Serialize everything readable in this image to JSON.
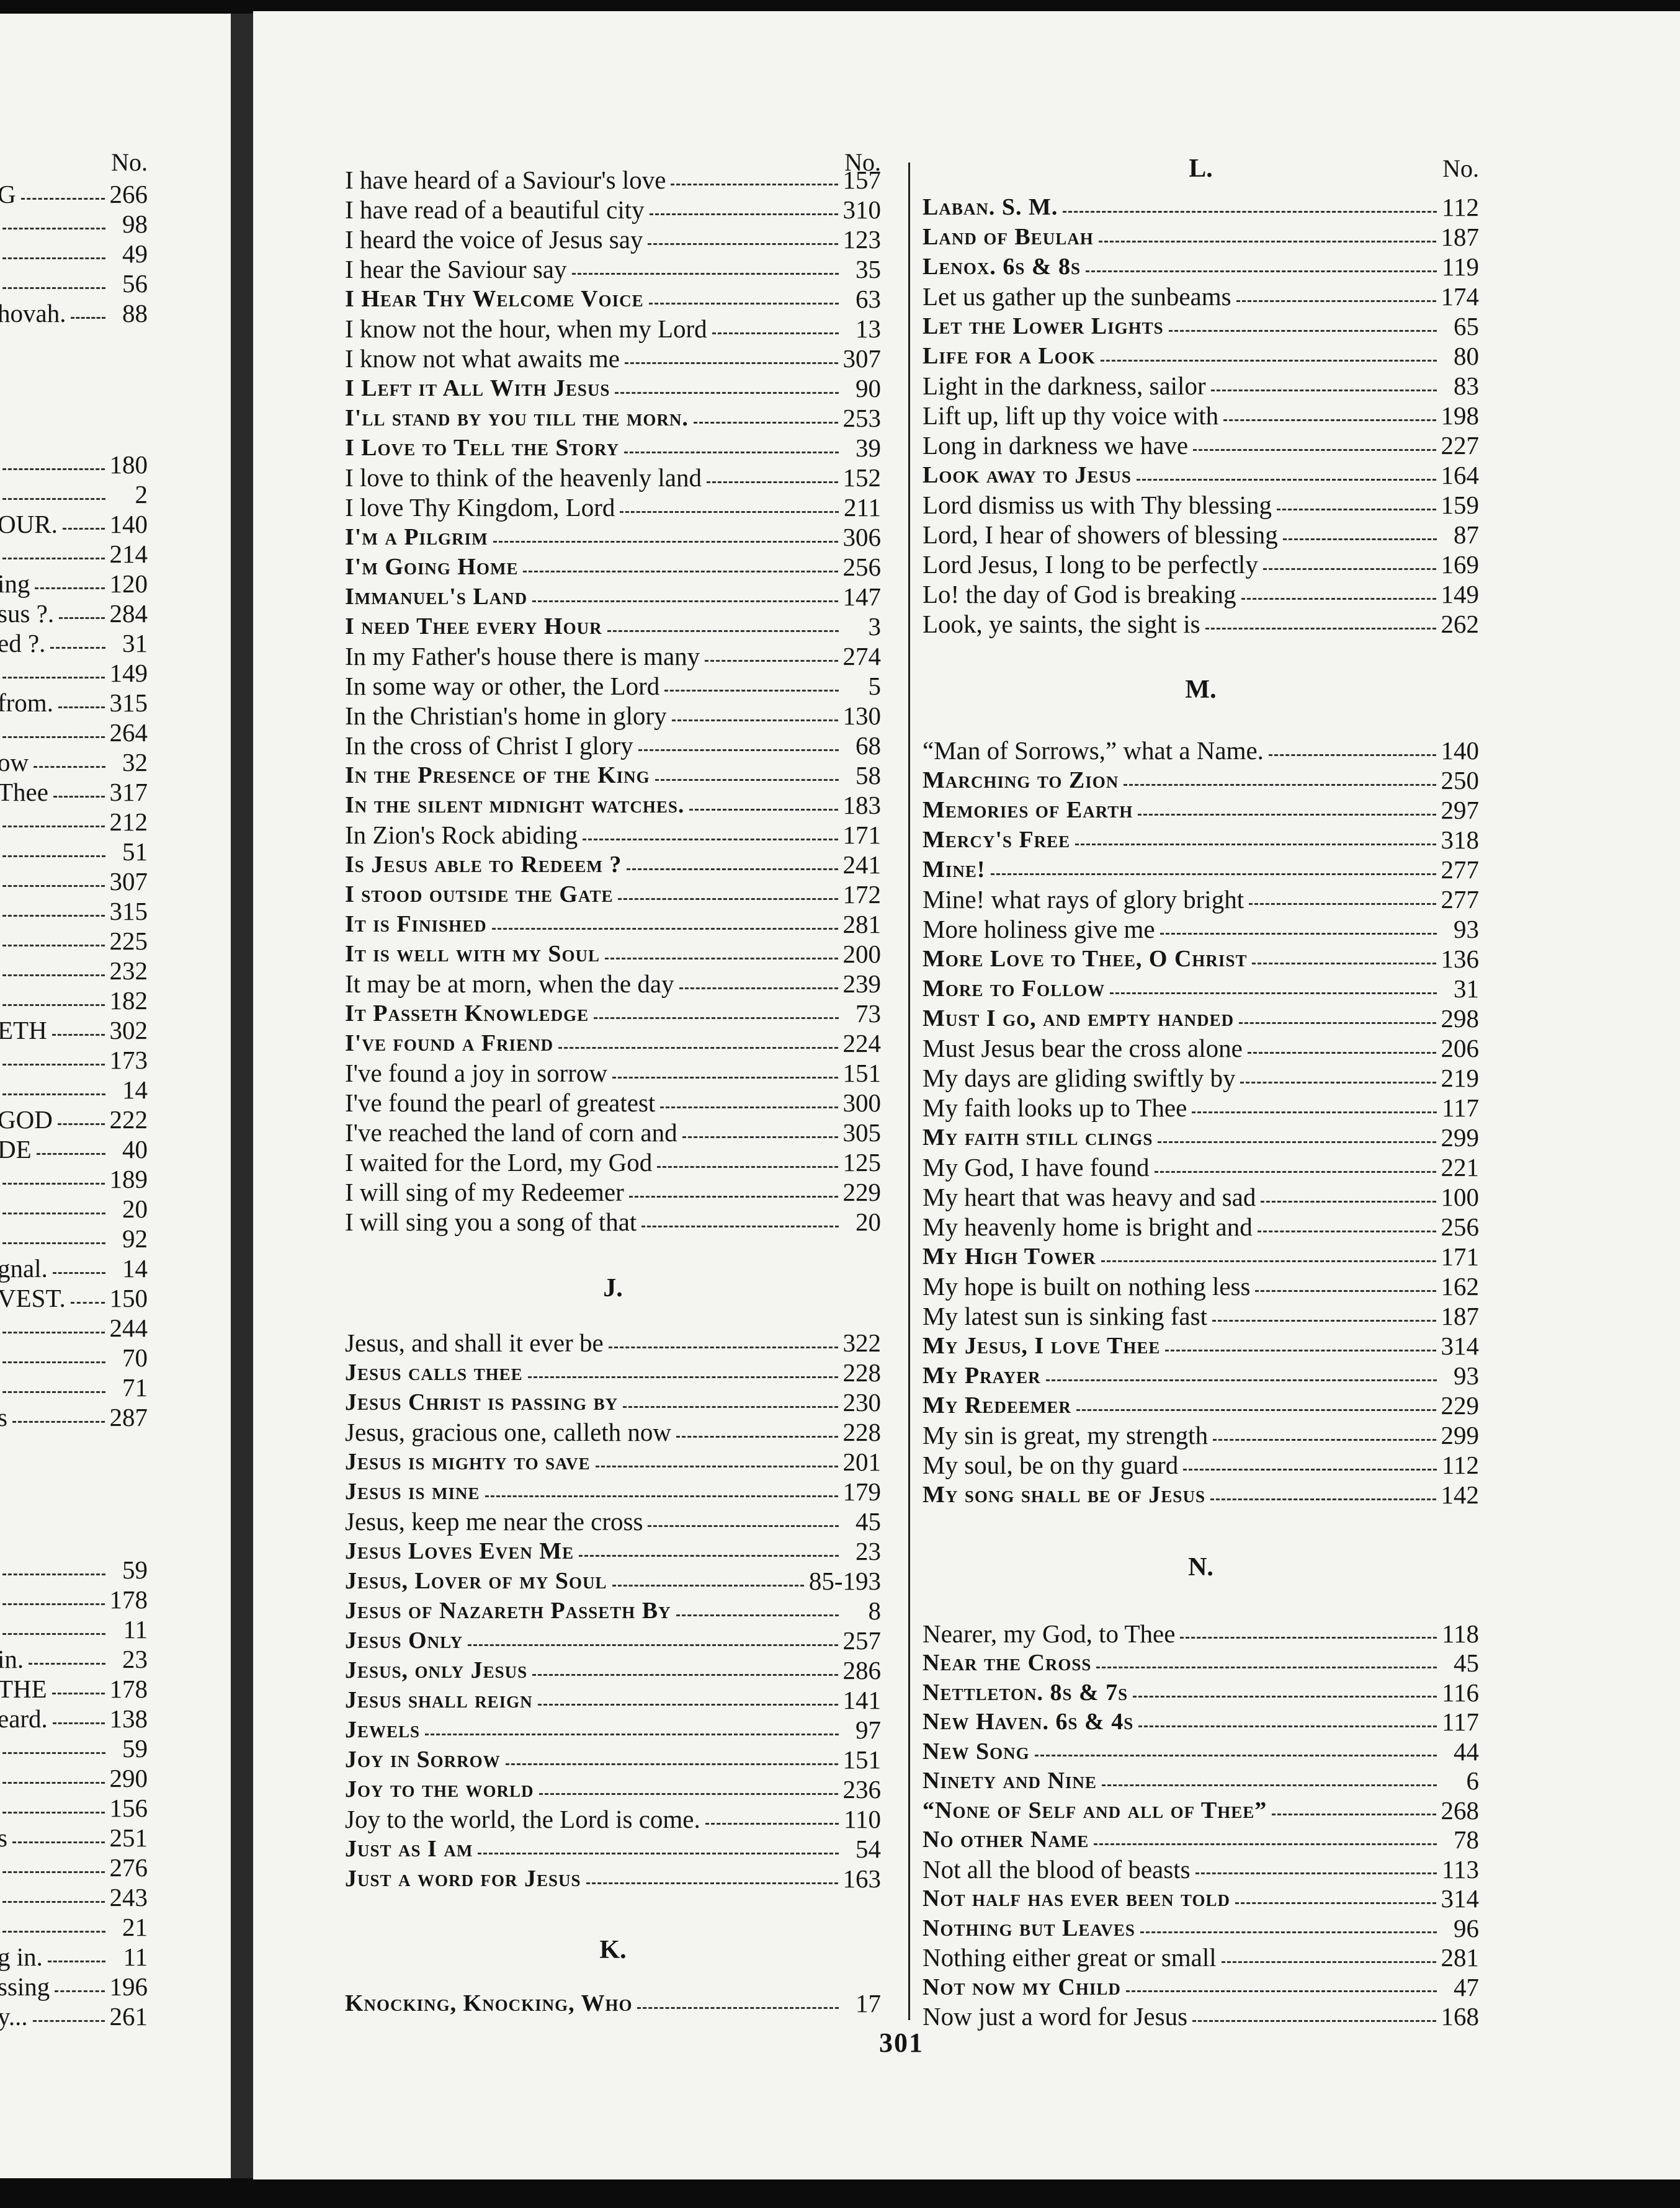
{
  "left_page": {
    "header": "No.",
    "groups": [
      [
        {
          "title": "G",
          "number": 266
        },
        {
          "number": 98
        },
        {
          "number": 49
        },
        {
          "number": 56
        },
        {
          "title": "hovah.",
          "number": 88
        }
      ],
      [
        {
          "number": 180
        },
        {
          "number": 2
        },
        {
          "title": "OUR.",
          "number": 140
        },
        {
          "number": 214
        },
        {
          "title": "ing",
          "number": 120
        },
        {
          "title": "sus ?.",
          "number": 284
        },
        {
          "title": "ed ?.",
          "number": 31
        },
        {
          "number": 149
        },
        {
          "title": "from.",
          "number": 315
        },
        {
          "number": 264
        },
        {
          "title": "ow",
          "number": 32
        },
        {
          "title": "Thee",
          "number": 317
        },
        {
          "number": 212
        },
        {
          "number": 51
        },
        {
          "number": 307
        },
        {
          "number": 315
        },
        {
          "number": 225
        },
        {
          "number": 232
        },
        {
          "number": 182
        },
        {
          "title": "ETH",
          "number": 302
        },
        {
          "number": 173
        },
        {
          "number": 14
        },
        {
          "title": "GOD",
          "number": 222
        },
        {
          "title": "DE",
          "number": 40
        },
        {
          "number": 189
        },
        {
          "number": 20
        },
        {
          "number": 92
        },
        {
          "title": "gnal.",
          "number": 14
        },
        {
          "title": "VEST.",
          "number": 150
        },
        {
          "number": 244
        },
        {
          "number": 70
        },
        {
          "number": 71
        },
        {
          "title": "s",
          "number": 287
        }
      ],
      [
        {
          "number": 59
        },
        {
          "number": 178
        },
        {
          "number": 11
        },
        {
          "title": "in.",
          "number": 23
        },
        {
          "title": "THE",
          "number": 178
        },
        {
          "title": "eard.",
          "number": 138
        },
        {
          "number": 59
        },
        {
          "number": 290
        },
        {
          "number": 156
        },
        {
          "title": "s",
          "number": 251
        },
        {
          "number": 276
        },
        {
          "number": 243
        },
        {
          "number": 21
        },
        {
          "title": "g in.",
          "number": 11
        },
        {
          "title": "ssing",
          "number": 196
        },
        {
          "title": "y...",
          "number": 261
        }
      ]
    ]
  },
  "right_page": {
    "page_number": 301,
    "columns": [
      {
        "header": "No.",
        "sections": [
          {
            "entries": [
              {
                "title": "I have heard of a Saviour's love",
                "number": 157
              },
              {
                "title": "I have read of a beautiful city",
                "number": 310
              },
              {
                "title": "I heard the voice of Jesus say",
                "number": 123
              },
              {
                "title": "I hear the Saviour say",
                "number": 35
              },
              {
                "title": "I Hear Thy Welcome Voice",
                "number": 63,
                "small_caps": true
              },
              {
                "title": "I know not the hour, when my Lord",
                "number": 13
              },
              {
                "title": "I know not what awaits me",
                "number": 307
              },
              {
                "title": "I Left it All With Jesus",
                "number": 90,
                "small_caps": true
              },
              {
                "title": "I'll stand by you till the morn.",
                "number": 253,
                "small_caps": true
              },
              {
                "title": "I Love to Tell the Story",
                "number": 39,
                "small_caps": true
              },
              {
                "title": "I love to think of the heavenly land",
                "number": 152
              },
              {
                "title": "I love Thy Kingdom, Lord",
                "number": 211
              },
              {
                "title": "I'm a Pilgrim",
                "number": 306,
                "small_caps": true
              },
              {
                "title": "I'm Going Home",
                "number": 256,
                "small_caps": true
              },
              {
                "title": "Immanuel's Land",
                "number": 147,
                "small_caps": true
              },
              {
                "title": "I need Thee every Hour",
                "number": 3,
                "small_caps": true
              },
              {
                "title": "In my Father's house there is many",
                "number": 274
              },
              {
                "title": "In some way or other, the Lord",
                "number": 5
              },
              {
                "title": "In the Christian's home in glory",
                "number": 130
              },
              {
                "title": "In the cross of Christ I glory",
                "number": 68
              },
              {
                "title": "In the Presence of the King",
                "number": 58,
                "small_caps": true
              },
              {
                "title": "In the silent midnight watches.",
                "number": 183,
                "small_caps": true
              },
              {
                "title": "In Zion's Rock abiding",
                "number": 171
              },
              {
                "title": "Is Jesus able to Redeem ?",
                "number": 241,
                "small_caps": true
              },
              {
                "title": "I stood outside the Gate",
                "number": 172,
                "small_caps": true
              },
              {
                "title": "It is Finished",
                "number": 281,
                "small_caps": true
              },
              {
                "title": "It is well with my Soul",
                "number": 200,
                "small_caps": true
              },
              {
                "title": "It may be at morn, when the day",
                "number": 239
              },
              {
                "title": "It Passeth Knowledge",
                "number": 73,
                "small_caps": true
              },
              {
                "title": "I've found a Friend",
                "number": 224,
                "small_caps": true
              },
              {
                "title": "I've found a joy in sorrow",
                "number": 151
              },
              {
                "title": "I've found the pearl of greatest",
                "number": 300
              },
              {
                "title": "I've reached the land of corn and",
                "number": 305
              },
              {
                "title": "I waited for the Lord, my God",
                "number": 125
              },
              {
                "title": "I will sing of my Redeemer",
                "number": 229
              },
              {
                "title": "I will sing you a song of that",
                "number": 20
              }
            ]
          },
          {
            "letter": "J.",
            "entries": [
              {
                "title": "Jesus, and shall it ever be",
                "number": 322
              },
              {
                "title": "Jesus calls thee",
                "number": 228,
                "small_caps": true
              },
              {
                "title": "Jesus Christ is passing by",
                "number": 230,
                "small_caps": true
              },
              {
                "title": "Jesus, gracious one, calleth now",
                "number": 228
              },
              {
                "title": "Jesus is mighty to save",
                "number": 201,
                "small_caps": true
              },
              {
                "title": "Jesus is mine",
                "number": 179,
                "small_caps": true
              },
              {
                "title": "Jesus, keep me near the cross",
                "number": 45
              },
              {
                "title": "Jesus Loves Even Me",
                "number": 23,
                "small_caps": true
              },
              {
                "title": "Jesus, Lover of my Soul",
                "number": "85-193",
                "small_caps": true
              },
              {
                "title": "Jesus of Nazareth Passeth By",
                "number": 8,
                "small_caps": true
              },
              {
                "title": "Jesus Only",
                "number": 257,
                "small_caps": true
              },
              {
                "title": "Jesus, only Jesus",
                "number": 286,
                "small_caps": true
              },
              {
                "title": "Jesus shall reign",
                "number": 141,
                "small_caps": true
              },
              {
                "title": "Jewels",
                "number": 97,
                "small_caps": true
              },
              {
                "title": "Joy in Sorrow",
                "number": 151,
                "small_caps": true
              },
              {
                "title": "Joy to the world",
                "number": 236,
                "small_caps": true
              },
              {
                "title": "Joy to the world, the Lord is come.",
                "number": 110
              },
              {
                "title": "Just as I am",
                "number": 54,
                "small_caps": true
              },
              {
                "title": "Just a word for Jesus",
                "number": 163,
                "small_caps": true
              }
            ]
          },
          {
            "letter": "K.",
            "entries": [
              {
                "title": "Knocking, Knocking, Who",
                "number": 17,
                "small_caps": true
              }
            ]
          }
        ]
      },
      {
        "header": "No.",
        "sections": [
          {
            "letter": "L.",
            "entries": [
              {
                "title": "Laban. S. M.",
                "number": 112,
                "small_caps": true
              },
              {
                "title": "Land of Beulah",
                "number": 187,
                "small_caps": true
              },
              {
                "title": "Lenox. 6s & 8s",
                "number": 119,
                "small_caps": true
              },
              {
                "title": "Let us gather up the sunbeams",
                "number": 174
              },
              {
                "title": "Let the Lower Lights",
                "number": 65,
                "small_caps": true
              },
              {
                "title": "Life for a Look",
                "number": 80,
                "small_caps": true
              },
              {
                "title": "Light in the darkness, sailor",
                "number": 83
              },
              {
                "title": "Lift up, lift up thy voice with",
                "number": 198
              },
              {
                "title": "Long in darkness we have",
                "number": 227
              },
              {
                "title": "Look away to Jesus",
                "number": 164,
                "small_caps": true
              },
              {
                "title": "Lord dismiss us with Thy blessing",
                "number": 159
              },
              {
                "title": "Lord, I hear of showers of blessing",
                "number": 87
              },
              {
                "title": "Lord Jesus, I long to be perfectly",
                "number": 169
              },
              {
                "title": "Lo! the day of God is breaking",
                "number": 149
              },
              {
                "title": "Look, ye saints, the sight is",
                "number": 262
              }
            ]
          },
          {
            "letter": "M.",
            "entries": [
              {
                "title": "“Man of Sorrows,” what a Name.",
                "number": 140
              },
              {
                "title": "Marching to Zion",
                "number": 250,
                "small_caps": true
              },
              {
                "title": "Memories of Earth",
                "number": 297,
                "small_caps": true
              },
              {
                "title": "Mercy's Free",
                "number": 318,
                "small_caps": true
              },
              {
                "title": "Mine!",
                "number": 277,
                "small_caps": true
              },
              {
                "title": "Mine! what rays of glory bright",
                "number": 277
              },
              {
                "title": "More holiness give me",
                "number": 93
              },
              {
                "title": "More Love to Thee, O Christ",
                "number": 136,
                "small_caps": true
              },
              {
                "title": "More to Follow",
                "number": 31,
                "small_caps": true
              },
              {
                "title": "Must I go, and empty handed",
                "number": 298,
                "small_caps": true
              },
              {
                "title": "Must Jesus bear the cross alone",
                "number": 206
              },
              {
                "title": "My days are gliding swiftly by",
                "number": 219
              },
              {
                "title": "My faith looks up to Thee",
                "number": 117
              },
              {
                "title": "My faith still clings",
                "number": 299,
                "small_caps": true
              },
              {
                "title": "My God, I have found",
                "number": 221
              },
              {
                "title": "My heart that was heavy and sad",
                "number": 100
              },
              {
                "title": "My heavenly home is bright and",
                "number": 256
              },
              {
                "title": "My High Tower",
                "number": 171,
                "small_caps": true
              },
              {
                "title": "My hope is built on nothing less",
                "number": 162
              },
              {
                "title": "My latest sun is sinking fast",
                "number": 187
              },
              {
                "title": "My Jesus, I love Thee",
                "number": 314,
                "small_caps": true
              },
              {
                "title": "My Prayer",
                "number": 93,
                "small_caps": true
              },
              {
                "title": "My Redeemer",
                "number": 229,
                "small_caps": true
              },
              {
                "title": "My sin is great, my strength",
                "number": 299
              },
              {
                "title": "My soul, be on thy guard",
                "number": 112
              },
              {
                "title": "My song shall be of Jesus",
                "number": 142,
                "small_caps": true
              }
            ]
          },
          {
            "letter": "N.",
            "entries": [
              {
                "title": "Nearer, my God, to Thee",
                "number": 118
              },
              {
                "title": "Near the Cross",
                "number": 45,
                "small_caps": true
              },
              {
                "title": "Nettleton. 8s & 7s",
                "number": 116,
                "small_caps": true
              },
              {
                "title": "New Haven. 6s & 4s",
                "number": 117,
                "small_caps": true
              },
              {
                "title": "New Song",
                "number": 44,
                "small_caps": true
              },
              {
                "title": "Ninety and Nine",
                "number": 6,
                "small_caps": true
              },
              {
                "title": "“None of Self and all of Thee”",
                "number": 268,
                "small_caps": true
              },
              {
                "title": "No other Name",
                "number": 78,
                "small_caps": true
              },
              {
                "title": "Not all the blood of beasts",
                "number": 113
              },
              {
                "title": "Not half has ever been told",
                "number": 314,
                "small_caps": true
              },
              {
                "title": "Nothing but Leaves",
                "number": 96,
                "small_caps": true
              },
              {
                "title": "Nothing either great or small",
                "number": 281
              },
              {
                "title": "Not now my Child",
                "number": 47,
                "small_caps": true
              },
              {
                "title": "Now just a word for Jesus",
                "number": 168
              }
            ]
          }
        ]
      }
    ]
  }
}
